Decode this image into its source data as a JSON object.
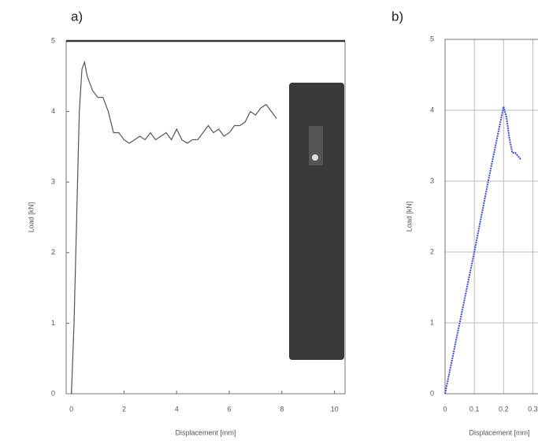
{
  "chart_data": [
    {
      "type": "line",
      "panel_label": "a)",
      "x_label": "Displacement [mm]",
      "y_label": "Load [kN]",
      "x": [
        0,
        0.1,
        0.2,
        0.3,
        0.4,
        0.5,
        0.6,
        0.8,
        1,
        1.2,
        1.4,
        1.6,
        1.8,
        2,
        2.2,
        2.4,
        2.6,
        2.8,
        3,
        3.2,
        3.4,
        3.6,
        3.8,
        4,
        4.2,
        4.4,
        4.6,
        4.8,
        5,
        5.2,
        5.4,
        5.6,
        5.8,
        6,
        6.2,
        6.4,
        6.6,
        6.8,
        7,
        7.2,
        7.4,
        7.6,
        7.8
      ],
      "series": [
        {
          "color": "#555555",
          "values": [
            0,
            1,
            2.5,
            4,
            4.6,
            4.7,
            4.5,
            4.3,
            4.2,
            4.2,
            4.0,
            3.7,
            3.7,
            3.6,
            3.55,
            3.6,
            3.65,
            3.6,
            3.7,
            3.6,
            3.65,
            3.7,
            3.6,
            3.75,
            3.6,
            3.55,
            3.6,
            3.6,
            3.7,
            3.8,
            3.7,
            3.75,
            3.65,
            3.7,
            3.8,
            3.8,
            3.85,
            4.0,
            3.95,
            4.05,
            4.1,
            4.0,
            3.9
          ]
        }
      ],
      "xlim": [
        -0.2,
        10.4
      ],
      "xticks": [
        0,
        2,
        4,
        6,
        8,
        10
      ],
      "ylim": [
        0,
        5
      ],
      "yticks": [
        0,
        1,
        2,
        3,
        4,
        5
      ],
      "grid": false
    },
    {
      "type": "line",
      "panel_label": "b)",
      "x_label": "Displacement [mm]",
      "y_label": "Load [kN]",
      "x": [
        0,
        0.05,
        0.1,
        0.15,
        0.2,
        0.21,
        0.22,
        0.23,
        0.24,
        0.25,
        0.26
      ],
      "series": [
        {
          "color": "#3a4fd0",
          "values": [
            0,
            1.0,
            2.0,
            3.05,
            4.05,
            3.9,
            3.6,
            3.4,
            3.4,
            3.35,
            3.3
          ]
        }
      ],
      "xlim": [
        0,
        0.35
      ],
      "xticks": [
        0,
        0.1,
        0.2,
        0.3
      ],
      "ylim": [
        0,
        5
      ],
      "yticks": [
        0,
        1,
        2,
        3,
        4,
        5
      ],
      "grid": true
    }
  ]
}
